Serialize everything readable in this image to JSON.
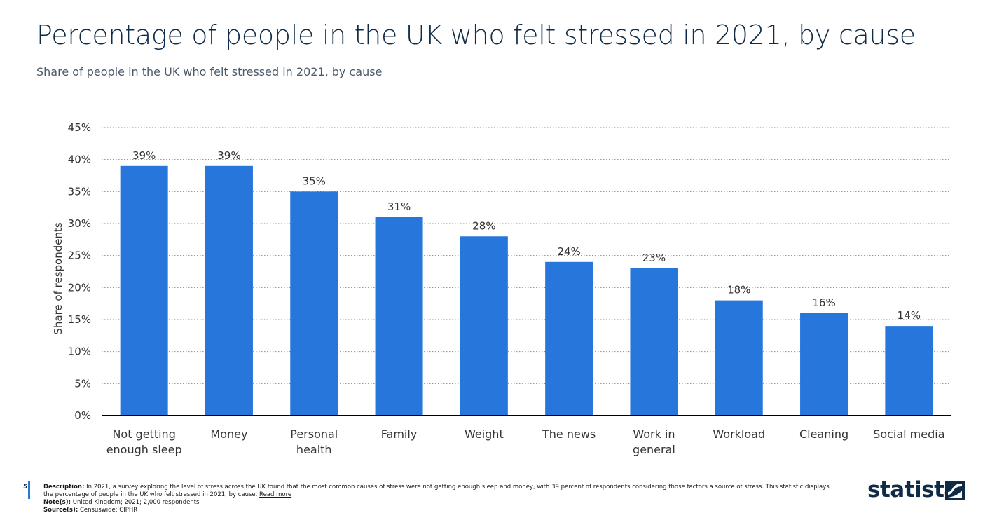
{
  "header": {
    "title": "Percentage of people in the UK who felt stressed in 2021, by cause",
    "subtitle": "Share of people in the UK who felt stressed in 2021, by cause"
  },
  "chart_data": {
    "type": "bar",
    "categories": [
      "Not getting enough sleep",
      "Money",
      "Personal health",
      "Family",
      "Weight",
      "The news",
      "Work in general",
      "Workload",
      "Cleaning",
      "Social media"
    ],
    "category_lines": [
      [
        "Not getting",
        "enough sleep"
      ],
      [
        "Money"
      ],
      [
        "Personal",
        "health"
      ],
      [
        "Family"
      ],
      [
        "Weight"
      ],
      [
        "The news"
      ],
      [
        "Work in",
        "general"
      ],
      [
        "Workload"
      ],
      [
        "Cleaning"
      ],
      [
        "Social media"
      ]
    ],
    "values": [
      39,
      39,
      35,
      31,
      28,
      24,
      23,
      18,
      16,
      14
    ],
    "data_labels": [
      "39%",
      "39%",
      "35%",
      "31%",
      "28%",
      "24%",
      "23%",
      "18%",
      "16%",
      "14%"
    ],
    "ylabel": "Share of respondents",
    "xlabel": "",
    "ylim": [
      0,
      45
    ],
    "yticks": [
      0,
      5,
      10,
      15,
      20,
      25,
      30,
      35,
      40,
      45
    ],
    "ytick_labels": [
      "0%",
      "5%",
      "10%",
      "15%",
      "20%",
      "25%",
      "30%",
      "35%",
      "40%",
      "45%"
    ],
    "grid": true,
    "bar_color": "#2776dc"
  },
  "footer": {
    "page_number": "5",
    "description_label": "Description:",
    "description": "In 2021, a survey exploring the level of stress across the UK found that the most common causes of stress were not getting enough sleep and money, with 39 percent of respondents considering those factors a source of stress. This statistic displays the percentage of people in the UK who felt stressed in 2021, by cause.",
    "read_more": "Read more",
    "notes_label": "Note(s):",
    "notes": "United Kingdom; 2021; 2,000 respondents",
    "sources_label": "Source(s):",
    "sources": "Censuswide; CIPHR",
    "logo": "statista"
  }
}
